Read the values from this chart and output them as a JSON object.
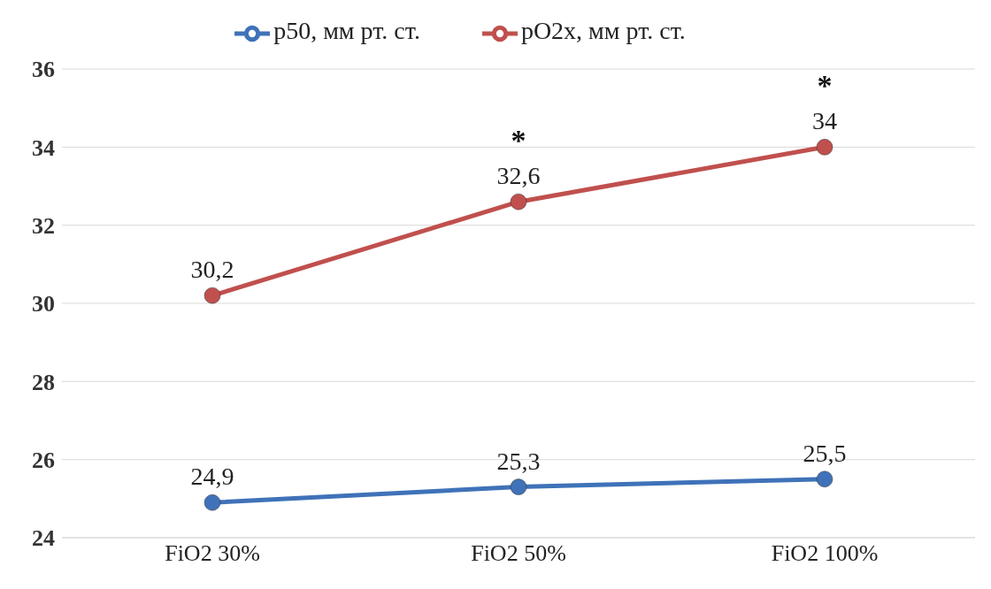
{
  "chart_data": {
    "type": "line",
    "categories": [
      "FiO2 30%",
      "FiO2 50%",
      "FiO2 100%"
    ],
    "series": [
      {
        "name": "p50, мм рт. ст.",
        "color": "#3f72b8",
        "values": [
          24.9,
          25.3,
          25.5
        ],
        "value_labels": [
          "24,9",
          "25,3",
          "25,5"
        ]
      },
      {
        "name": "pO2x, мм рт. ст.",
        "color": "#c0504d",
        "values": [
          30.2,
          32.6,
          34
        ],
        "value_labels": [
          "30,2",
          "32,6",
          "34"
        ]
      }
    ],
    "ylim": [
      24,
      36
    ],
    "yticks": [
      24,
      26,
      28,
      30,
      32,
      34,
      36
    ],
    "grid": "y",
    "legend": "top",
    "marker": "circle",
    "line_style": "solid",
    "annotations": [
      {
        "text": "*",
        "x": "FiO2 50%",
        "y": 32.6
      },
      {
        "text": "*",
        "x": "FiO2 100%",
        "y": 34
      }
    ]
  }
}
